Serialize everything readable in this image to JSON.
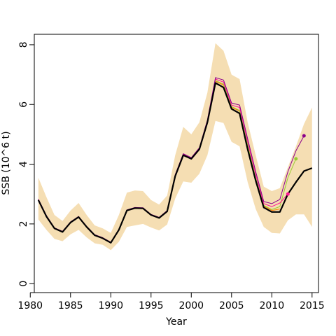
{
  "chart_data": {
    "type": "line",
    "xlabel": "Year",
    "ylabel": "SSB (10^6 t)",
    "xlim": [
      1980.5,
      2015.8
    ],
    "ylim": [
      -0.3,
      8.35
    ],
    "x_ticks": [
      1980,
      1985,
      1990,
      1995,
      2000,
      2005,
      2010,
      2015
    ],
    "y_ticks": [
      0,
      2,
      4,
      6,
      8
    ],
    "grid": false,
    "legend": "none",
    "colors": {
      "band": "#f5deb3",
      "main": "#000000",
      "retro1": "#8b008b",
      "retro2": "#ff1493",
      "retro3": "#9acd32",
      "retro4": "#ff7f00"
    },
    "band": {
      "x": [
        1981,
        1982,
        1983,
        1984,
        1985,
        1986,
        1987,
        1988,
        1989,
        1990,
        1991,
        1992,
        1993,
        1994,
        1995,
        1996,
        1997,
        1998,
        1999,
        2000,
        2001,
        2002,
        2003,
        2004,
        2005,
        2006,
        2007,
        2008,
        2009,
        2010,
        2011,
        2012,
        2013,
        2014,
        2015
      ],
      "upper": [
        3.55,
        2.9,
        2.3,
        2.1,
        2.45,
        2.7,
        2.3,
        1.95,
        1.85,
        1.7,
        2.3,
        3.05,
        3.12,
        3.1,
        2.8,
        2.65,
        2.95,
        4.3,
        5.25,
        5.0,
        5.4,
        6.4,
        8.05,
        7.8,
        7.0,
        6.85,
        5.4,
        4.3,
        3.25,
        3.1,
        3.2,
        3.9,
        4.6,
        5.35,
        5.9
      ],
      "lower": [
        2.15,
        1.8,
        1.5,
        1.42,
        1.65,
        1.8,
        1.55,
        1.35,
        1.3,
        1.12,
        1.4,
        1.9,
        1.95,
        2.0,
        1.88,
        1.78,
        1.98,
        2.85,
        3.42,
        3.38,
        3.68,
        4.3,
        5.45,
        5.38,
        4.75,
        4.6,
        3.4,
        2.5,
        1.9,
        1.7,
        1.68,
        2.12,
        2.32,
        2.32,
        1.9
      ]
    },
    "series": [
      {
        "x": [
          1981,
          1982,
          1983,
          1984,
          1985,
          1986,
          1987,
          1988,
          1989,
          1990,
          1991,
          1992,
          1993,
          1994,
          1995,
          1996,
          1997,
          1998,
          1999,
          2000,
          2001,
          2002,
          2003,
          2004,
          2005,
          2006,
          2007,
          2008,
          2009,
          2010,
          2011,
          2012,
          2013,
          2014,
          2015
        ],
        "values": [
          2.8,
          2.25,
          1.85,
          1.73,
          2.05,
          2.23,
          1.9,
          1.62,
          1.52,
          1.37,
          1.8,
          2.45,
          2.53,
          2.52,
          2.3,
          2.2,
          2.42,
          3.6,
          4.3,
          4.18,
          4.5,
          5.4,
          6.72,
          6.57,
          5.85,
          5.7,
          4.5,
          3.45,
          2.55,
          2.4,
          2.4,
          3.0,
          3.4,
          3.77,
          3.87
        ]
      },
      {
        "x": [
          1981,
          1982,
          1983,
          1984,
          1985,
          1986,
          1987,
          1988,
          1989,
          1990,
          1991,
          1992,
          1993,
          1994,
          1995,
          1996,
          1997,
          1998,
          1999,
          2000,
          2001,
          2002,
          2003,
          2004,
          2005,
          2006,
          2007,
          2008,
          2009,
          2010,
          2011,
          2012,
          2013,
          2014
        ],
        "values": [
          2.83,
          2.28,
          1.87,
          1.75,
          2.07,
          2.25,
          1.92,
          1.64,
          1.54,
          1.39,
          1.82,
          2.47,
          2.55,
          2.54,
          2.32,
          2.22,
          2.45,
          3.65,
          4.35,
          4.22,
          4.55,
          5.48,
          6.9,
          6.82,
          6.05,
          5.98,
          4.85,
          3.75,
          2.75,
          2.68,
          2.82,
          3.75,
          4.45,
          4.95
        ]
      },
      {
        "x": [
          1981,
          1982,
          1983,
          1984,
          1985,
          1986,
          1987,
          1988,
          1989,
          1990,
          1991,
          1992,
          1993,
          1994,
          1995,
          1996,
          1997,
          1998,
          1999,
          2000,
          2001,
          2002,
          2003,
          2004,
          2005,
          2006,
          2007,
          2008,
          2009,
          2010,
          2011,
          2012
        ],
        "values": [
          2.82,
          2.27,
          1.86,
          1.74,
          2.06,
          2.24,
          1.91,
          1.63,
          1.53,
          1.38,
          1.81,
          2.46,
          2.54,
          2.53,
          2.31,
          2.21,
          2.44,
          3.63,
          4.33,
          4.2,
          4.53,
          5.45,
          6.85,
          6.75,
          5.98,
          5.9,
          4.75,
          3.65,
          2.68,
          2.58,
          2.7,
          3.0
        ]
      },
      {
        "x": [
          1981,
          1982,
          1983,
          1984,
          1985,
          1986,
          1987,
          1988,
          1989,
          1990,
          1991,
          1992,
          1993,
          1994,
          1995,
          1996,
          1997,
          1998,
          1999,
          2000,
          2001,
          2002,
          2003,
          2004,
          2005,
          2006,
          2007,
          2008,
          2009,
          2010,
          2011,
          2012,
          2013
        ],
        "values": [
          2.81,
          2.26,
          1.86,
          1.74,
          2.06,
          2.24,
          1.91,
          1.63,
          1.53,
          1.38,
          1.81,
          2.46,
          2.54,
          2.53,
          2.31,
          2.21,
          2.43,
          3.62,
          4.32,
          4.19,
          4.52,
          5.43,
          6.8,
          6.68,
          5.93,
          5.8,
          4.65,
          3.55,
          2.62,
          2.48,
          2.58,
          3.55,
          4.18
        ]
      },
      {
        "x": [
          1981,
          1982,
          1983,
          1984,
          1985,
          1986,
          1987,
          1988,
          1989,
          1990,
          1991,
          1992,
          1993,
          1994,
          1995,
          1996,
          1997,
          1998,
          1999,
          2000,
          2001,
          2002,
          2003,
          2004,
          2005,
          2006,
          2007,
          2008,
          2009,
          2010,
          2011
        ],
        "values": [
          2.81,
          2.26,
          1.86,
          1.74,
          2.06,
          2.24,
          1.91,
          1.63,
          1.53,
          1.38,
          1.81,
          2.46,
          2.54,
          2.53,
          2.31,
          2.21,
          2.43,
          3.62,
          4.31,
          4.19,
          4.51,
          5.42,
          6.78,
          6.65,
          5.9,
          5.78,
          4.6,
          3.5,
          2.6,
          2.45,
          2.5
        ]
      }
    ],
    "endpoints": [
      {
        "x": 2014,
        "y": 4.95
      },
      {
        "x": 2012,
        "y": 3.0
      },
      {
        "x": 2013,
        "y": 4.18
      }
    ]
  }
}
